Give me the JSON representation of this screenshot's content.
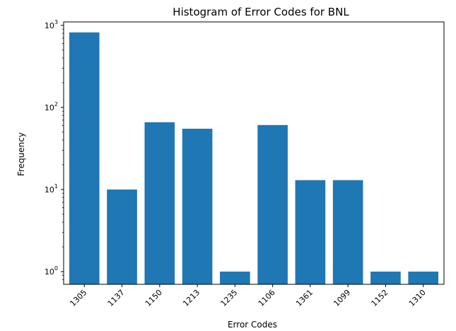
{
  "chart_data": {
    "type": "bar",
    "title": "Histogram of Error Codes for BNL",
    "xlabel": "Error Codes",
    "ylabel": "Frequency",
    "yscale": "log",
    "ylim": [
      0.7,
      1100
    ],
    "yticks": [
      1,
      10,
      100,
      1000
    ],
    "ytick_labels": [
      {
        "base": "10",
        "exp": "0"
      },
      {
        "base": "10",
        "exp": "1"
      },
      {
        "base": "10",
        "exp": "2"
      },
      {
        "base": "10",
        "exp": "3"
      }
    ],
    "categories": [
      "1305",
      "1137",
      "1150",
      "1213",
      "1235",
      "1106",
      "1361",
      "1099",
      "1152",
      "1310"
    ],
    "values": [
      820,
      10,
      66,
      55,
      1,
      61,
      13,
      13,
      1,
      1
    ],
    "bar_color": "#1f77b4",
    "grid": false,
    "legend": "none"
  }
}
